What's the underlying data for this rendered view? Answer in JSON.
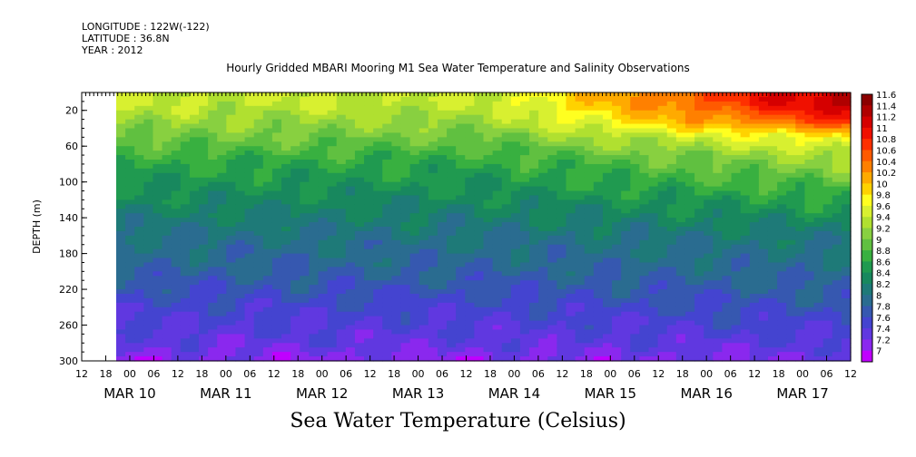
{
  "header": {
    "longitude": "LONGITUDE : 122W(-122)",
    "latitude": "LATITUDE : 36.8N",
    "year": "YEAR : 2012"
  },
  "chart_data": {
    "type": "heatmap",
    "title": "Hourly Gridded MBARI Mooring M1 Sea Water Temperature and Salinity Observations",
    "subtitle": "Sea Water Temperature (Celsius)",
    "ylabel": "DEPTH (m)",
    "ylim": [
      300,
      0
    ],
    "y_ticks": [
      20,
      60,
      100,
      140,
      180,
      220,
      260,
      300
    ],
    "x_start": "2012-03-10 12:00",
    "x_end": "2012-03-17 12:00",
    "x_hour_labels": [
      "12",
      "18",
      "00",
      "06",
      "12",
      "18",
      "00",
      "06",
      "12",
      "18",
      "00",
      "06",
      "12",
      "18",
      "00",
      "06",
      "12",
      "18",
      "00",
      "06",
      "12",
      "18",
      "00",
      "06",
      "12",
      "18",
      "00",
      "06",
      "12",
      "18",
      "00",
      "06",
      "12"
    ],
    "x_day_labels": [
      "MAR 10",
      "MAR 11",
      "MAR 12",
      "MAR 13",
      "MAR 14",
      "MAR 15",
      "MAR 16",
      "MAR 17"
    ],
    "colorbar": {
      "levels": [
        "11.6",
        "11.4",
        "11.2",
        "11",
        "10.8",
        "10.6",
        "10.4",
        "10.2",
        "10",
        "9.8",
        "9.6",
        "9.4",
        "9.2",
        "9",
        "8.8",
        "8.6",
        "8.4",
        "8.2",
        "8",
        "7.8",
        "7.6",
        "7.4",
        "7.2",
        "7"
      ],
      "colors": [
        "#8b0000",
        "#b00000",
        "#d50000",
        "#f01000",
        "#ff3000",
        "#ff5a00",
        "#ff8000",
        "#ffaa00",
        "#ffd200",
        "#ffff20",
        "#d8f030",
        "#b0e030",
        "#88d040",
        "#60c040",
        "#38b040",
        "#209a50",
        "#18885e",
        "#1e7a78",
        "#2a6c90",
        "#3658b0",
        "#4444d0",
        "#6038e0",
        "#8a28ee",
        "#c000ff"
      ]
    },
    "depth_profile_mid": [
      {
        "depth": 10,
        "value": 9.6
      },
      {
        "depth": 40,
        "value": 9.3
      },
      {
        "depth": 80,
        "value": 8.8
      },
      {
        "depth": 120,
        "value": 8.5
      },
      {
        "depth": 160,
        "value": 8.2
      },
      {
        "depth": 200,
        "value": 8.0
      },
      {
        "depth": 240,
        "value": 7.7
      },
      {
        "depth": 280,
        "value": 7.5
      },
      {
        "depth": 300,
        "value": 7.3
      }
    ],
    "depth_profile_end": [
      {
        "depth": 10,
        "value": 11.5
      },
      {
        "depth": 30,
        "value": 11.0
      },
      {
        "depth": 50,
        "value": 10.0
      },
      {
        "depth": 70,
        "value": 9.5
      },
      {
        "depth": 120,
        "value": 8.8
      },
      {
        "depth": 160,
        "value": 8.3
      },
      {
        "depth": 220,
        "value": 8.0
      },
      {
        "depth": 260,
        "value": 7.7
      },
      {
        "depth": 300,
        "value": 7.4
      }
    ]
  }
}
